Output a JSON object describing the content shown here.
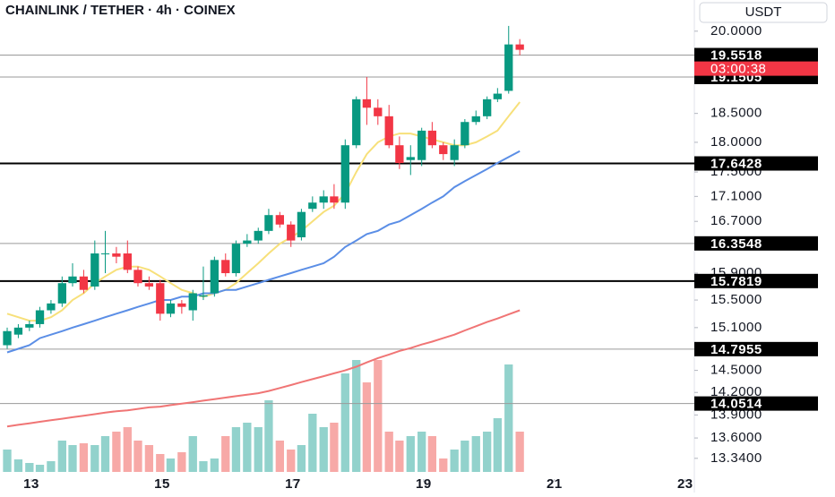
{
  "chart_data": {
    "type": "candlestick",
    "title": "CHAINLINK / TETHER · 4h · COINEX",
    "currency": "USDT",
    "countdown": "03:00:38",
    "log": true,
    "ylim": [
      13.08,
      20.6
    ],
    "xlim": [
      12.52,
      23.14
    ],
    "yticks": [
      {
        "value": 20,
        "label": "20.0000"
      },
      {
        "value": 18.5,
        "label": "18.5000"
      },
      {
        "value": 18,
        "label": "18.0000"
      },
      {
        "value": 17.5,
        "label": "17.5000"
      },
      {
        "value": 17.1,
        "label": "17.1000"
      },
      {
        "value": 16.7,
        "label": "16.7000"
      },
      {
        "value": 15.9,
        "label": "15.9000"
      },
      {
        "value": 15.5,
        "label": "15.5000"
      },
      {
        "value": 15.1,
        "label": "15.1000"
      },
      {
        "value": 14.5,
        "label": "14.5000"
      },
      {
        "value": 14.2,
        "label": "14.2000"
      },
      {
        "value": 13.9,
        "label": "13.9000"
      },
      {
        "value": 13.6,
        "label": "13.6000"
      },
      {
        "value": 13.34,
        "label": "13.3400"
      }
    ],
    "xticks": [
      13,
      15,
      17,
      19,
      21,
      23
    ],
    "x": [
      12.63,
      12.8,
      12.97,
      13.13,
      13.3,
      13.47,
      13.63,
      13.8,
      13.97,
      14.13,
      14.3,
      14.47,
      14.63,
      14.8,
      14.97,
      15.13,
      15.3,
      15.47,
      15.63,
      15.8,
      15.97,
      16.13,
      16.3,
      16.47,
      16.63,
      16.8,
      16.97,
      17.13,
      17.3,
      17.47,
      17.63,
      17.8,
      17.97,
      18.13,
      18.3,
      18.47,
      18.63,
      18.8,
      18.97,
      19.13,
      19.3,
      19.47,
      19.63,
      19.8,
      19.97,
      20.13,
      20.3,
      20.47
    ],
    "open": [
      14.85,
      15.0,
      15.1,
      15.15,
      15.35,
      15.45,
      15.75,
      15.85,
      15.7,
      16.2,
      16.2,
      16.2,
      15.95,
      15.75,
      15.75,
      15.3,
      15.45,
      15.35,
      15.55,
      15.6,
      16.1,
      15.9,
      16.35,
      16.4,
      16.55,
      16.8,
      16.65,
      16.45,
      16.9,
      17.0,
      17.1,
      17.0,
      17.95,
      18.75,
      18.6,
      18.45,
      17.95,
      17.7,
      17.7,
      18.2,
      17.95,
      17.7,
      17.95,
      18.35,
      18.45,
      18.75,
      18.9,
      19.75
    ],
    "high": [
      15.1,
      15.15,
      15.2,
      15.4,
      15.5,
      15.85,
      16.05,
      15.95,
      16.4,
      16.55,
      16.3,
      16.4,
      16.0,
      15.85,
      15.8,
      15.5,
      15.5,
      15.65,
      16.0,
      16.15,
      16.2,
      16.4,
      16.5,
      16.6,
      16.9,
      16.85,
      16.7,
      16.9,
      17.1,
      17.2,
      17.3,
      18.05,
      18.8,
      19.15,
      18.75,
      18.65,
      18.1,
      17.95,
      18.25,
      18.35,
      18.0,
      18.05,
      18.4,
      18.55,
      18.8,
      18.95,
      20.1,
      19.85
    ],
    "low": [
      14.8,
      14.95,
      15.05,
      15.1,
      15.3,
      15.4,
      15.7,
      15.6,
      15.65,
      15.9,
      16.05,
      15.9,
      15.7,
      15.65,
      15.2,
      15.25,
      15.3,
      15.2,
      15.5,
      15.55,
      15.85,
      15.85,
      16.3,
      16.35,
      16.5,
      16.6,
      16.3,
      16.4,
      16.85,
      16.9,
      16.9,
      16.9,
      17.9,
      18.3,
      18.3,
      17.9,
      17.55,
      17.45,
      17.6,
      17.9,
      17.7,
      17.6,
      17.9,
      18.3,
      18.4,
      18.7,
      18.85,
      19.55
    ],
    "close": [
      15.05,
      15.1,
      15.15,
      15.35,
      15.45,
      15.75,
      15.85,
      15.65,
      16.2,
      16.2,
      16.15,
      15.95,
      15.75,
      15.7,
      15.3,
      15.45,
      15.4,
      15.6,
      15.57,
      16.1,
      15.9,
      16.35,
      16.4,
      16.55,
      16.8,
      16.65,
      16.4,
      16.85,
      17.0,
      17.1,
      17.0,
      17.95,
      18.75,
      18.6,
      18.45,
      17.95,
      17.65,
      17.75,
      18.2,
      17.95,
      17.8,
      17.95,
      18.35,
      18.45,
      18.75,
      18.85,
      19.75,
      19.65
    ],
    "volume": [
      25,
      14,
      10,
      8,
      12,
      35,
      30,
      32,
      30,
      40,
      45,
      50,
      35,
      30,
      20,
      15,
      22,
      40,
      12,
      15,
      40,
      50,
      55,
      50,
      80,
      35,
      25,
      30,
      65,
      50,
      55,
      110,
      125,
      100,
      125,
      45,
      35,
      40,
      45,
      40,
      15,
      25,
      35,
      40,
      45,
      60,
      120,
      45
    ],
    "up_color": "#089981",
    "down_color": "#f23645",
    "volume_up_color": "#92d2cc",
    "volume_down_color": "#f7a9a7",
    "lines": [
      {
        "color": "#f7e07a",
        "values": [
          15.3,
          15.25,
          15.2,
          15.2,
          15.25,
          15.35,
          15.5,
          15.6,
          15.75,
          15.85,
          15.95,
          16.0,
          16.0,
          15.95,
          15.85,
          15.75,
          15.65,
          15.6,
          15.55,
          15.6,
          15.65,
          15.75,
          15.9,
          16.05,
          16.2,
          16.35,
          16.45,
          16.55,
          16.7,
          16.85,
          16.95,
          17.15,
          17.5,
          17.8,
          18.0,
          18.1,
          18.15,
          18.15,
          18.1,
          18.05,
          18.0,
          17.95,
          17.95,
          18.0,
          18.1,
          18.2,
          18.45,
          18.7
        ]
      },
      {
        "color": "#5b8ee6",
        "values": [
          14.75,
          14.8,
          14.85,
          14.95,
          15.0,
          15.05,
          15.1,
          15.15,
          15.2,
          15.25,
          15.3,
          15.35,
          15.4,
          15.45,
          15.5,
          15.5,
          15.55,
          15.55,
          15.6,
          15.6,
          15.65,
          15.65,
          15.7,
          15.75,
          15.8,
          15.85,
          15.9,
          15.95,
          16.0,
          16.05,
          16.15,
          16.3,
          16.4,
          16.5,
          16.55,
          16.65,
          16.7,
          16.8,
          16.9,
          17.0,
          17.1,
          17.25,
          17.35,
          17.45,
          17.55,
          17.65,
          17.75,
          17.85
        ]
      },
      {
        "color": "#f07575",
        "values": [
          13.75,
          13.77,
          13.79,
          13.81,
          13.83,
          13.85,
          13.87,
          13.89,
          13.91,
          13.93,
          13.95,
          13.96,
          13.98,
          14.0,
          14.01,
          14.03,
          14.05,
          14.07,
          14.09,
          14.11,
          14.13,
          14.15,
          14.17,
          14.19,
          14.22,
          14.26,
          14.3,
          14.34,
          14.38,
          14.42,
          14.46,
          14.5,
          14.55,
          14.61,
          14.67,
          14.72,
          14.77,
          14.81,
          14.86,
          14.9,
          14.95,
          15.0,
          15.06,
          15.12,
          15.18,
          15.23,
          15.29,
          15.35
        ]
      }
    ],
    "levels": [
      {
        "value": 19.5518,
        "color": "#9a9a9a",
        "width": 1
      },
      {
        "value": 19.1505,
        "color": "#9a9a9a",
        "width": 1
      },
      {
        "value": 17.6428,
        "color": "#000000",
        "width": 2
      },
      {
        "value": 16.3548,
        "color": "#9a9a9a",
        "width": 1
      },
      {
        "value": 15.7819,
        "color": "#000000",
        "width": 2
      },
      {
        "value": 14.7955,
        "color": "#9a9a9a",
        "width": 1
      },
      {
        "value": 14.0514,
        "color": "#9a9a9a",
        "width": 1
      }
    ]
  }
}
